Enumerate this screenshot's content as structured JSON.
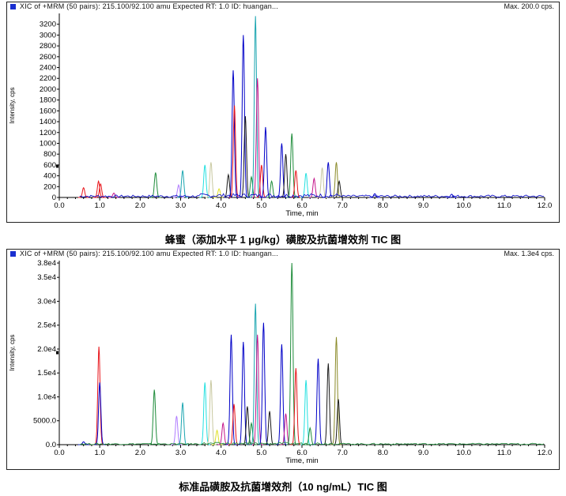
{
  "charts": [
    {
      "header": "XIC of +MRM (50 pairs): 215.100/92.100 amu Expected RT: 1.0 ID: huangan...",
      "max_label": "Max. 200.0 cps.",
      "caption": "蜂蜜（添加水平 1 μg/kg）磺胺及抗菌增效剂 TIC 图"
    },
    {
      "header": "XIC of +MRM (50 pairs): 215.100/92.100 amu Expected RT: 1.0 ID: huangan...",
      "max_label": "Max. 1.3e4 cps.",
      "caption": "标准品磺胺及抗菌增效剂（10 ng/mL）TIC 图"
    }
  ],
  "chart_data": [
    {
      "type": "line",
      "xlabel": "Time, min",
      "ylabel": "Intensity, cps",
      "xlim": [
        0,
        12
      ],
      "ylim": [
        0,
        3400
      ],
      "xticks": [
        "0.0",
        "1.0",
        "2.0",
        "3.0",
        "4.0",
        "5.0",
        "6.0",
        "7.0",
        "8.0",
        "9.0",
        "10.0",
        "11.0",
        "12.0"
      ],
      "yticks": [
        {
          "v": 0,
          "l": "0"
        },
        {
          "v": 200,
          "l": "200"
        },
        {
          "v": 400,
          "l": "400"
        },
        {
          "v": 600,
          "l": "600"
        },
        {
          "v": 800,
          "l": "800"
        },
        {
          "v": 1000,
          "l": "1000"
        },
        {
          "v": 1200,
          "l": "1200"
        },
        {
          "v": 1400,
          "l": "1400"
        },
        {
          "v": 1600,
          "l": "1600"
        },
        {
          "v": 1800,
          "l": "1800"
        },
        {
          "v": 2000,
          "l": "2000"
        },
        {
          "v": 2200,
          "l": "2200"
        },
        {
          "v": 2400,
          "l": "2400"
        },
        {
          "v": 2600,
          "l": "2600"
        },
        {
          "v": 2800,
          "l": "2800"
        },
        {
          "v": 3000,
          "l": "3000"
        },
        {
          "v": 3200,
          "l": "3200"
        }
      ],
      "peaks": [
        {
          "rt": 0.6,
          "h": 180,
          "color": "#e8141a"
        },
        {
          "rt": 0.97,
          "h": 300,
          "color": "#e8141a"
        },
        {
          "rt": 1.02,
          "h": 250,
          "color": "#e8141a"
        },
        {
          "rt": 1.35,
          "h": 80,
          "color": "#c4148a"
        },
        {
          "rt": 2.38,
          "h": 460,
          "color": "#1e8c3a"
        },
        {
          "rt": 2.95,
          "h": 230,
          "color": "#b07cff"
        },
        {
          "rt": 3.05,
          "h": 500,
          "color": "#1aa5b0"
        },
        {
          "rt": 3.6,
          "h": 600,
          "color": "#22e0e0"
        },
        {
          "rt": 3.75,
          "h": 650,
          "color": "#c8c8a0"
        },
        {
          "rt": 3.95,
          "h": 160,
          "color": "#e0e028"
        },
        {
          "rt": 4.18,
          "h": 420,
          "color": "#1a1a1a"
        },
        {
          "rt": 4.3,
          "h": 2350,
          "color": "#0000c8"
        },
        {
          "rt": 4.33,
          "h": 1700,
          "color": "#e8141a"
        },
        {
          "rt": 4.55,
          "h": 3000,
          "color": "#0000c8"
        },
        {
          "rt": 4.6,
          "h": 1500,
          "color": "#1a1a1a"
        },
        {
          "rt": 4.75,
          "h": 380,
          "color": "#1e8c3a"
        },
        {
          "rt": 4.85,
          "h": 3350,
          "color": "#1aa5b0"
        },
        {
          "rt": 4.9,
          "h": 2200,
          "color": "#c4148a"
        },
        {
          "rt": 5.0,
          "h": 600,
          "color": "#e8141a"
        },
        {
          "rt": 5.1,
          "h": 1300,
          "color": "#0000c8"
        },
        {
          "rt": 5.25,
          "h": 300,
          "color": "#1e8c3a"
        },
        {
          "rt": 5.5,
          "h": 1000,
          "color": "#0000c8"
        },
        {
          "rt": 5.6,
          "h": 800,
          "color": "#1a1a1a"
        },
        {
          "rt": 5.75,
          "h": 1180,
          "color": "#1e8c3a"
        },
        {
          "rt": 5.85,
          "h": 500,
          "color": "#e8141a"
        },
        {
          "rt": 6.1,
          "h": 450,
          "color": "#22e0e0"
        },
        {
          "rt": 6.3,
          "h": 350,
          "color": "#c4148a"
        },
        {
          "rt": 6.5,
          "h": 550,
          "color": "#c8c8a0"
        },
        {
          "rt": 6.65,
          "h": 650,
          "color": "#0000c8"
        },
        {
          "rt": 6.85,
          "h": 650,
          "color": "#8a8a28"
        },
        {
          "rt": 6.92,
          "h": 300,
          "color": "#1a1a1a"
        },
        {
          "rt": 7.8,
          "h": 70,
          "color": "#0000c8"
        },
        {
          "rt": 9.7,
          "h": 60,
          "color": "#0000c8"
        }
      ]
    },
    {
      "type": "line",
      "xlabel": "Time, min",
      "ylabel": "Intensity, cps",
      "xlim": [
        0,
        12
      ],
      "ylim": [
        0,
        38500
      ],
      "xticks": [
        "0.0",
        "1.0",
        "2.0",
        "3.0",
        "4.0",
        "5.0",
        "6.0",
        "7.0",
        "8.0",
        "9.0",
        "10.0",
        "11.0",
        "12.0"
      ],
      "yticks": [
        {
          "v": 0,
          "l": "0.0"
        },
        {
          "v": 5000,
          "l": "5000.0"
        },
        {
          "v": 10000,
          "l": "1.0e4"
        },
        {
          "v": 15000,
          "l": "1.5e4"
        },
        {
          "v": 20000,
          "l": "2.0e4"
        },
        {
          "v": 25000,
          "l": "2.5e4"
        },
        {
          "v": 30000,
          "l": "3.0e4"
        },
        {
          "v": 35000,
          "l": "3.5e4"
        },
        {
          "v": 38000,
          "l": "3.8e4"
        }
      ],
      "peaks": [
        {
          "rt": 0.98,
          "h": 20500,
          "color": "#e8141a"
        },
        {
          "rt": 1.0,
          "h": 13000,
          "color": "#0000c8"
        },
        {
          "rt": 2.35,
          "h": 11500,
          "color": "#1e8c3a"
        },
        {
          "rt": 2.9,
          "h": 6000,
          "color": "#b07cff"
        },
        {
          "rt": 3.05,
          "h": 8800,
          "color": "#1aa5b0"
        },
        {
          "rt": 3.6,
          "h": 13000,
          "color": "#22e0e0"
        },
        {
          "rt": 3.75,
          "h": 13500,
          "color": "#c8c8a0"
        },
        {
          "rt": 3.9,
          "h": 3000,
          "color": "#e0e028"
        },
        {
          "rt": 4.05,
          "h": 4500,
          "color": "#c4148a"
        },
        {
          "rt": 4.25,
          "h": 23000,
          "color": "#0000c8"
        },
        {
          "rt": 4.32,
          "h": 8500,
          "color": "#e8141a"
        },
        {
          "rt": 4.55,
          "h": 21500,
          "color": "#0000c8"
        },
        {
          "rt": 4.65,
          "h": 8000,
          "color": "#1a1a1a"
        },
        {
          "rt": 4.75,
          "h": 4500,
          "color": "#1e8c3a"
        },
        {
          "rt": 4.85,
          "h": 29500,
          "color": "#1aa5b0"
        },
        {
          "rt": 4.9,
          "h": 23000,
          "color": "#c4148a"
        },
        {
          "rt": 5.05,
          "h": 25500,
          "color": "#0000c8"
        },
        {
          "rt": 5.2,
          "h": 7000,
          "color": "#1a1a1a"
        },
        {
          "rt": 5.5,
          "h": 21000,
          "color": "#0000c8"
        },
        {
          "rt": 5.6,
          "h": 6500,
          "color": "#c4148a"
        },
        {
          "rt": 5.75,
          "h": 38000,
          "color": "#1e8c3a"
        },
        {
          "rt": 5.85,
          "h": 16000,
          "color": "#e8141a"
        },
        {
          "rt": 6.1,
          "h": 13500,
          "color": "#22e0e0"
        },
        {
          "rt": 6.2,
          "h": 3500,
          "color": "#1e8c3a"
        },
        {
          "rt": 6.4,
          "h": 18000,
          "color": "#0000c8"
        },
        {
          "rt": 6.65,
          "h": 17000,
          "color": "#1a1a1a"
        },
        {
          "rt": 6.85,
          "h": 22500,
          "color": "#8a8a28"
        },
        {
          "rt": 6.9,
          "h": 9500,
          "color": "#1a1a1a"
        },
        {
          "rt": 0.6,
          "h": 600,
          "color": "#0000c8"
        }
      ]
    }
  ]
}
